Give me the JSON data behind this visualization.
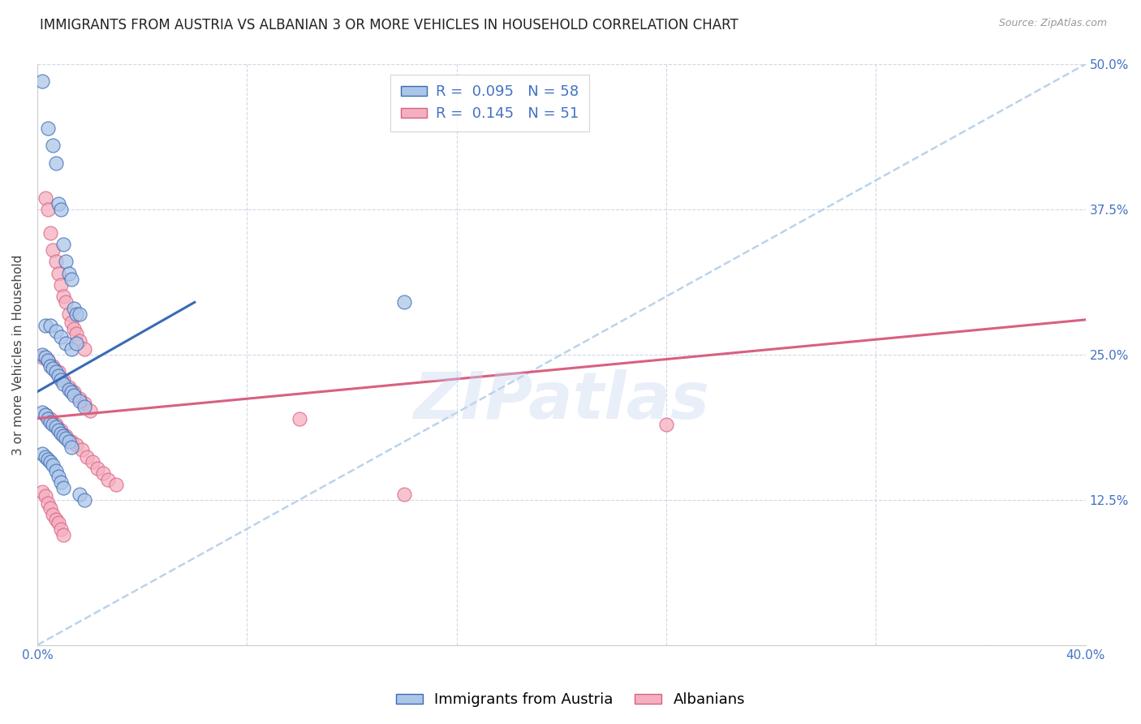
{
  "title": "IMMIGRANTS FROM AUSTRIA VS ALBANIAN 3 OR MORE VEHICLES IN HOUSEHOLD CORRELATION CHART",
  "source": "Source: ZipAtlas.com",
  "ylabel": "3 or more Vehicles in Household",
  "legend_labels": [
    "Immigrants from Austria",
    "Albanians"
  ],
  "austria_R": 0.095,
  "austria_N": 58,
  "albanian_R": 0.145,
  "albanian_N": 51,
  "xlim": [
    0.0,
    0.4
  ],
  "ylim": [
    0.0,
    0.5
  ],
  "yticks": [
    0.0,
    0.125,
    0.25,
    0.375,
    0.5
  ],
  "xticks": [
    0.0,
    0.08,
    0.16,
    0.24,
    0.32,
    0.4
  ],
  "austria_color": "#adc6e8",
  "albanian_color": "#f4afc0",
  "austria_line_color": "#3a6ab5",
  "albanian_line_color": "#d96080",
  "diag_line_color": "#b0cce8",
  "right_tick_color": "#4472c4",
  "austria_scatter_x": [
    0.002,
    0.004,
    0.006,
    0.007,
    0.008,
    0.009,
    0.01,
    0.011,
    0.012,
    0.013,
    0.014,
    0.015,
    0.016,
    0.003,
    0.005,
    0.007,
    0.009,
    0.011,
    0.013,
    0.015,
    0.002,
    0.003,
    0.004,
    0.005,
    0.006,
    0.007,
    0.008,
    0.009,
    0.01,
    0.012,
    0.013,
    0.014,
    0.016,
    0.018,
    0.002,
    0.003,
    0.004,
    0.005,
    0.006,
    0.007,
    0.008,
    0.009,
    0.01,
    0.011,
    0.012,
    0.013,
    0.002,
    0.003,
    0.004,
    0.005,
    0.006,
    0.007,
    0.008,
    0.009,
    0.01,
    0.016,
    0.018,
    0.14
  ],
  "austria_scatter_y": [
    0.485,
    0.445,
    0.43,
    0.415,
    0.38,
    0.375,
    0.345,
    0.33,
    0.32,
    0.315,
    0.29,
    0.285,
    0.285,
    0.275,
    0.275,
    0.27,
    0.265,
    0.26,
    0.255,
    0.26,
    0.25,
    0.248,
    0.245,
    0.24,
    0.238,
    0.235,
    0.232,
    0.228,
    0.225,
    0.22,
    0.218,
    0.215,
    0.21,
    0.205,
    0.2,
    0.198,
    0.195,
    0.192,
    0.19,
    0.188,
    0.185,
    0.182,
    0.18,
    0.178,
    0.175,
    0.17,
    0.165,
    0.162,
    0.16,
    0.158,
    0.155,
    0.15,
    0.145,
    0.14,
    0.135,
    0.13,
    0.125,
    0.295
  ],
  "albanian_scatter_x": [
    0.003,
    0.004,
    0.005,
    0.006,
    0.007,
    0.008,
    0.009,
    0.01,
    0.011,
    0.012,
    0.013,
    0.014,
    0.015,
    0.016,
    0.018,
    0.002,
    0.004,
    0.006,
    0.008,
    0.01,
    0.012,
    0.014,
    0.016,
    0.018,
    0.02,
    0.003,
    0.005,
    0.007,
    0.009,
    0.011,
    0.013,
    0.015,
    0.017,
    0.019,
    0.021,
    0.023,
    0.025,
    0.027,
    0.03,
    0.002,
    0.003,
    0.004,
    0.005,
    0.006,
    0.007,
    0.008,
    0.009,
    0.01,
    0.24,
    0.14,
    0.1
  ],
  "albanian_scatter_y": [
    0.385,
    0.375,
    0.355,
    0.34,
    0.33,
    0.32,
    0.31,
    0.3,
    0.295,
    0.285,
    0.278,
    0.272,
    0.268,
    0.262,
    0.255,
    0.248,
    0.245,
    0.24,
    0.235,
    0.228,
    0.222,
    0.218,
    0.212,
    0.208,
    0.202,
    0.198,
    0.195,
    0.19,
    0.185,
    0.18,
    0.175,
    0.172,
    0.168,
    0.162,
    0.158,
    0.152,
    0.148,
    0.142,
    0.138,
    0.132,
    0.128,
    0.122,
    0.118,
    0.112,
    0.108,
    0.105,
    0.1,
    0.095,
    0.19,
    0.13,
    0.195
  ],
  "austria_regline_x": [
    0.0,
    0.06
  ],
  "austria_regline_y": [
    0.218,
    0.295
  ],
  "albanian_regline_x": [
    0.0,
    0.4
  ],
  "albanian_regline_y": [
    0.195,
    0.28
  ],
  "diag_line_x": [
    0.0,
    0.4
  ],
  "diag_line_y": [
    0.0,
    0.5
  ],
  "watermark": "ZIPatlas",
  "background_color": "#ffffff",
  "grid_color": "#d0d8e8",
  "title_fontsize": 12,
  "axis_label_fontsize": 11,
  "tick_fontsize": 11,
  "legend_fontsize": 13
}
